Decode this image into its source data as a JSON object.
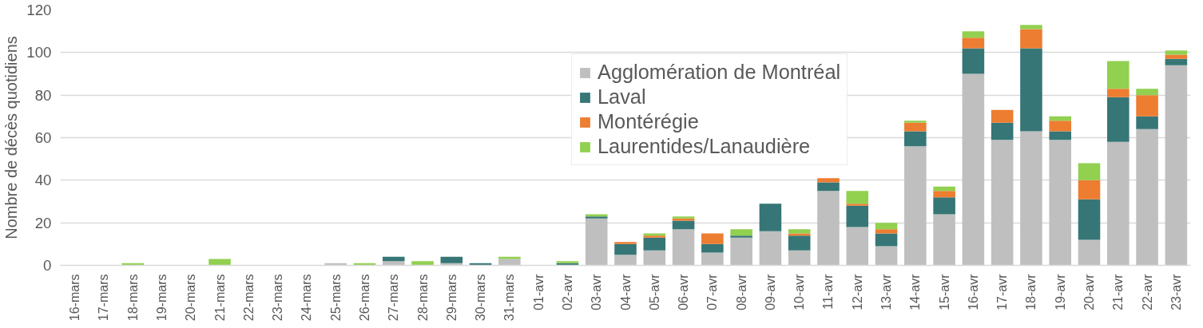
{
  "chart_data": {
    "type": "bar",
    "stacked": true,
    "ylabel": "Nombre de décès quotidiens",
    "categories": [
      "16-mars",
      "17-mars",
      "18-mars",
      "19-mars",
      "20-mars",
      "21-mars",
      "22-mars",
      "23-mars",
      "24-mars",
      "25-mars",
      "26-mars",
      "27-mars",
      "28-mars",
      "29-mars",
      "30-mars",
      "31-mars",
      "01-avr",
      "02-avr",
      "03-avr",
      "04-avr",
      "05-avr",
      "06-avr",
      "07-avr",
      "08-avr",
      "09-avr",
      "10-avr",
      "11-avr",
      "12-avr",
      "13-avr",
      "14-avr",
      "15-avr",
      "16-avr",
      "17-avr",
      "18-avr",
      "19-avr",
      "20-avr",
      "21-avr",
      "22-avr",
      "23-avr"
    ],
    "series": [
      {
        "name": "Agglomération de Montréal",
        "color": "#bfbfbf",
        "values": [
          0,
          0,
          0,
          0,
          0,
          0,
          0,
          0,
          0,
          1,
          0,
          2,
          0,
          1,
          0,
          3,
          0,
          0,
          22,
          5,
          7,
          17,
          6,
          13,
          16,
          7,
          35,
          18,
          9,
          56,
          24,
          90,
          59,
          63,
          59,
          12,
          58,
          64,
          94
        ]
      },
      {
        "name": "Laval",
        "color": "#367676",
        "values": [
          0,
          0,
          0,
          0,
          0,
          0,
          0,
          0,
          0,
          0,
          0,
          2,
          0,
          3,
          1,
          0,
          0,
          1,
          1,
          5,
          6,
          4,
          4,
          1,
          13,
          7,
          4,
          10,
          6,
          7,
          8,
          12,
          8,
          39,
          4,
          19,
          21,
          6,
          3
        ]
      },
      {
        "name": "Montérégie",
        "color": "#ed7d31",
        "values": [
          0,
          0,
          0,
          0,
          0,
          0,
          0,
          0,
          0,
          0,
          0,
          0,
          0,
          0,
          0,
          0,
          0,
          0,
          0,
          1,
          1,
          1,
          5,
          0,
          0,
          1,
          2,
          1,
          2,
          4,
          3,
          5,
          6,
          9,
          5,
          9,
          4,
          10,
          2
        ]
      },
      {
        "name": "Laurentides/Lanaudière",
        "color": "#92d050",
        "values": [
          0,
          0,
          1,
          0,
          0,
          3,
          0,
          0,
          0,
          0,
          1,
          0,
          2,
          0,
          0,
          1,
          0,
          1,
          1,
          0,
          1,
          1,
          0,
          3,
          0,
          2,
          0,
          6,
          3,
          1,
          2,
          3,
          0,
          2,
          2,
          8,
          13,
          3,
          2
        ]
      }
    ],
    "ylim": [
      0,
      120
    ],
    "yticks": [
      0,
      20,
      40,
      60,
      80,
      100,
      120
    ],
    "grid": "y",
    "legend": "top"
  }
}
